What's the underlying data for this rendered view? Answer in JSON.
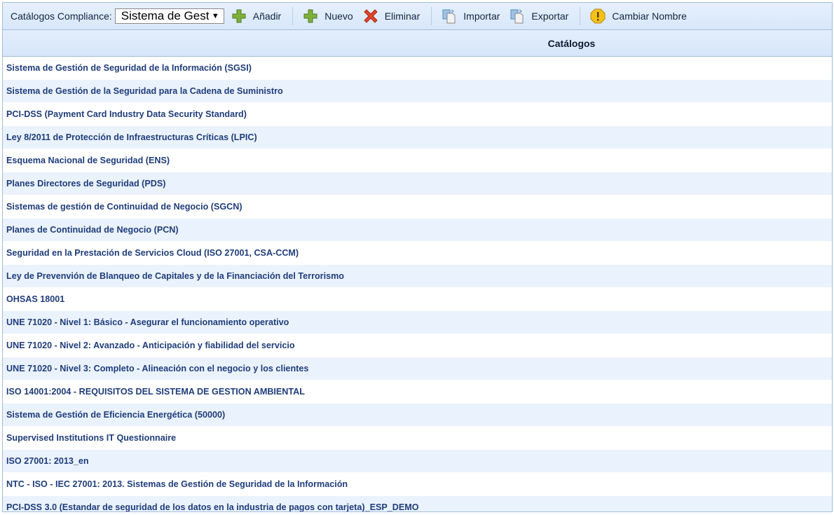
{
  "toolbar": {
    "label": "Catálogos Compliance:",
    "select_value": "Sistema de Gest",
    "buttons": [
      {
        "label": "Añadir",
        "icon": "plus-icon"
      },
      {
        "label": "Nuevo",
        "icon": "plus-icon"
      },
      {
        "label": "Eliminar",
        "icon": "delete-x-icon"
      },
      {
        "label": "Importar",
        "icon": "import-icon"
      },
      {
        "label": "Exportar",
        "icon": "export-icon"
      },
      {
        "label": "Cambiar Nombre",
        "icon": "warning-icon"
      }
    ]
  },
  "table": {
    "header": "Catálogos",
    "rows": [
      "Sistema de Gestión de Seguridad de la Información (SGSI)",
      "Sistema de Gestión de la Seguridad para la Cadena de Suministro",
      "PCI-DSS (Payment Card Industry Data Security Standard)",
      "Ley 8/2011 de Protección de Infraestructuras Críticas (LPIC)",
      "Esquema Nacional de Seguridad (ENS)",
      "Planes Directores de Seguridad (PDS)",
      "Sistemas de gestión de Continuidad de Negocio (SGCN)",
      "Planes de Continuidad de Negocio (PCN)",
      "Seguridad en la Prestación de Servicios Cloud (ISO 27001, CSA-CCM)",
      "Ley de Prevenvión de Blanqueo de Capitales y de la Financiación del Terrorismo",
      "OHSAS 18001",
      "UNE 71020 - Nivel 1: Básico - Asegurar el funcionamiento operativo",
      "UNE 71020 - Nivel 2: Avanzado - Anticipación y fiabilidad del servicio",
      "UNE 71020 - Nivel 3: Completo - Alineación con el negocio y los clientes",
      "ISO 14001:2004 - REQUISITOS DEL SISTEMA DE GESTION AMBIENTAL",
      "Sistema de Gestión de Eficiencia Energética (50000)",
      "Supervised Institutions IT Questionnaire",
      "ISO 27001: 2013_en",
      "NTC - ISO - IEC 27001: 2013. Sistemas de Gestión de Seguridad de la Información",
      "PCI-DSS 3.0 (Estandar de seguridad de los datos en la industria de pagos con tarjeta)_ESP_DEMO"
    ]
  }
}
